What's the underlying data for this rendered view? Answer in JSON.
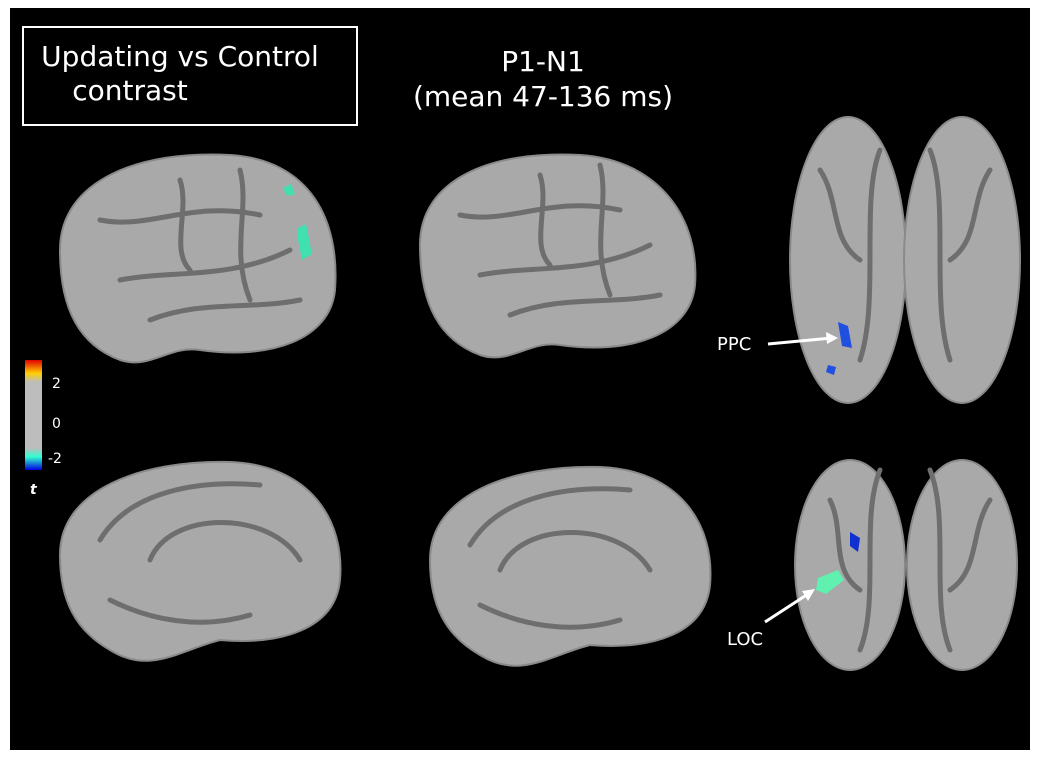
{
  "title_box": {
    "lines": [
      "Updating vs Control",
      "contrast"
    ]
  },
  "heading": {
    "lines": [
      "P1-N1",
      "(mean 47-136 ms)"
    ]
  },
  "colorbar": {
    "labels": [
      "2",
      "0",
      "-2"
    ],
    "symbol": "t"
  },
  "annotations": [
    "PPC",
    "LOC"
  ]
}
